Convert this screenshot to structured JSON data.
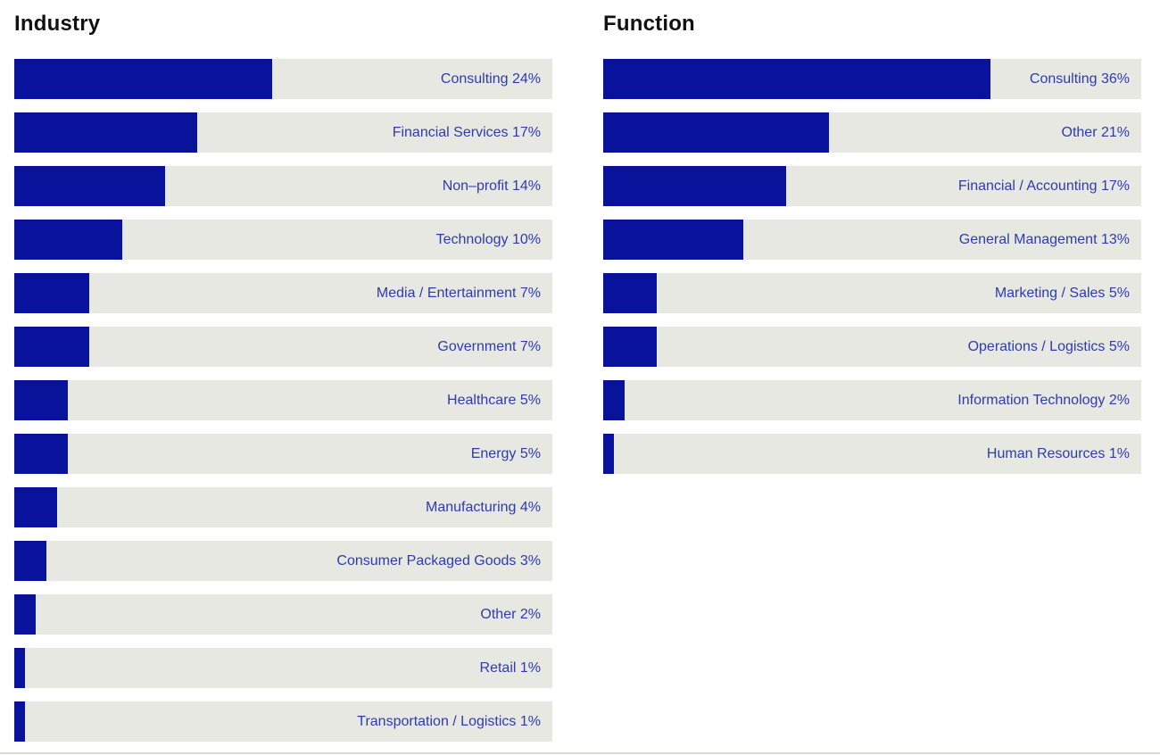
{
  "colors": {
    "bar_fill": "#09129b",
    "bar_track": "#e8e8e3",
    "label_text": "#2c3cad",
    "heading_text": "#111111",
    "divider": "#d9d9d5"
  },
  "chart_data": [
    {
      "type": "bar",
      "orientation": "horizontal",
      "title": "Industry",
      "unit": "%",
      "bar_scale_max": 50,
      "grid": false,
      "legend": false,
      "categories": [
        "Consulting",
        "Financial Services",
        "Non–profit",
        "Technology",
        "Media / Entertainment",
        "Government",
        "Healthcare",
        "Energy",
        "Manufacturing",
        "Consumer Packaged Goods",
        "Other",
        "Retail",
        "Transportation / Logistics"
      ],
      "values": [
        24,
        17,
        14,
        10,
        7,
        7,
        5,
        5,
        4,
        3,
        2,
        1,
        1
      ]
    },
    {
      "type": "bar",
      "orientation": "horizontal",
      "title": "Function",
      "unit": "%",
      "bar_scale_max": 50,
      "grid": false,
      "legend": false,
      "categories": [
        "Consulting",
        "Other",
        "Financial / Accounting",
        "General Management",
        "Marketing / Sales",
        "Operations / Logistics",
        "Information Technology",
        "Human Resources"
      ],
      "values": [
        36,
        21,
        17,
        13,
        5,
        5,
        2,
        1
      ]
    }
  ]
}
